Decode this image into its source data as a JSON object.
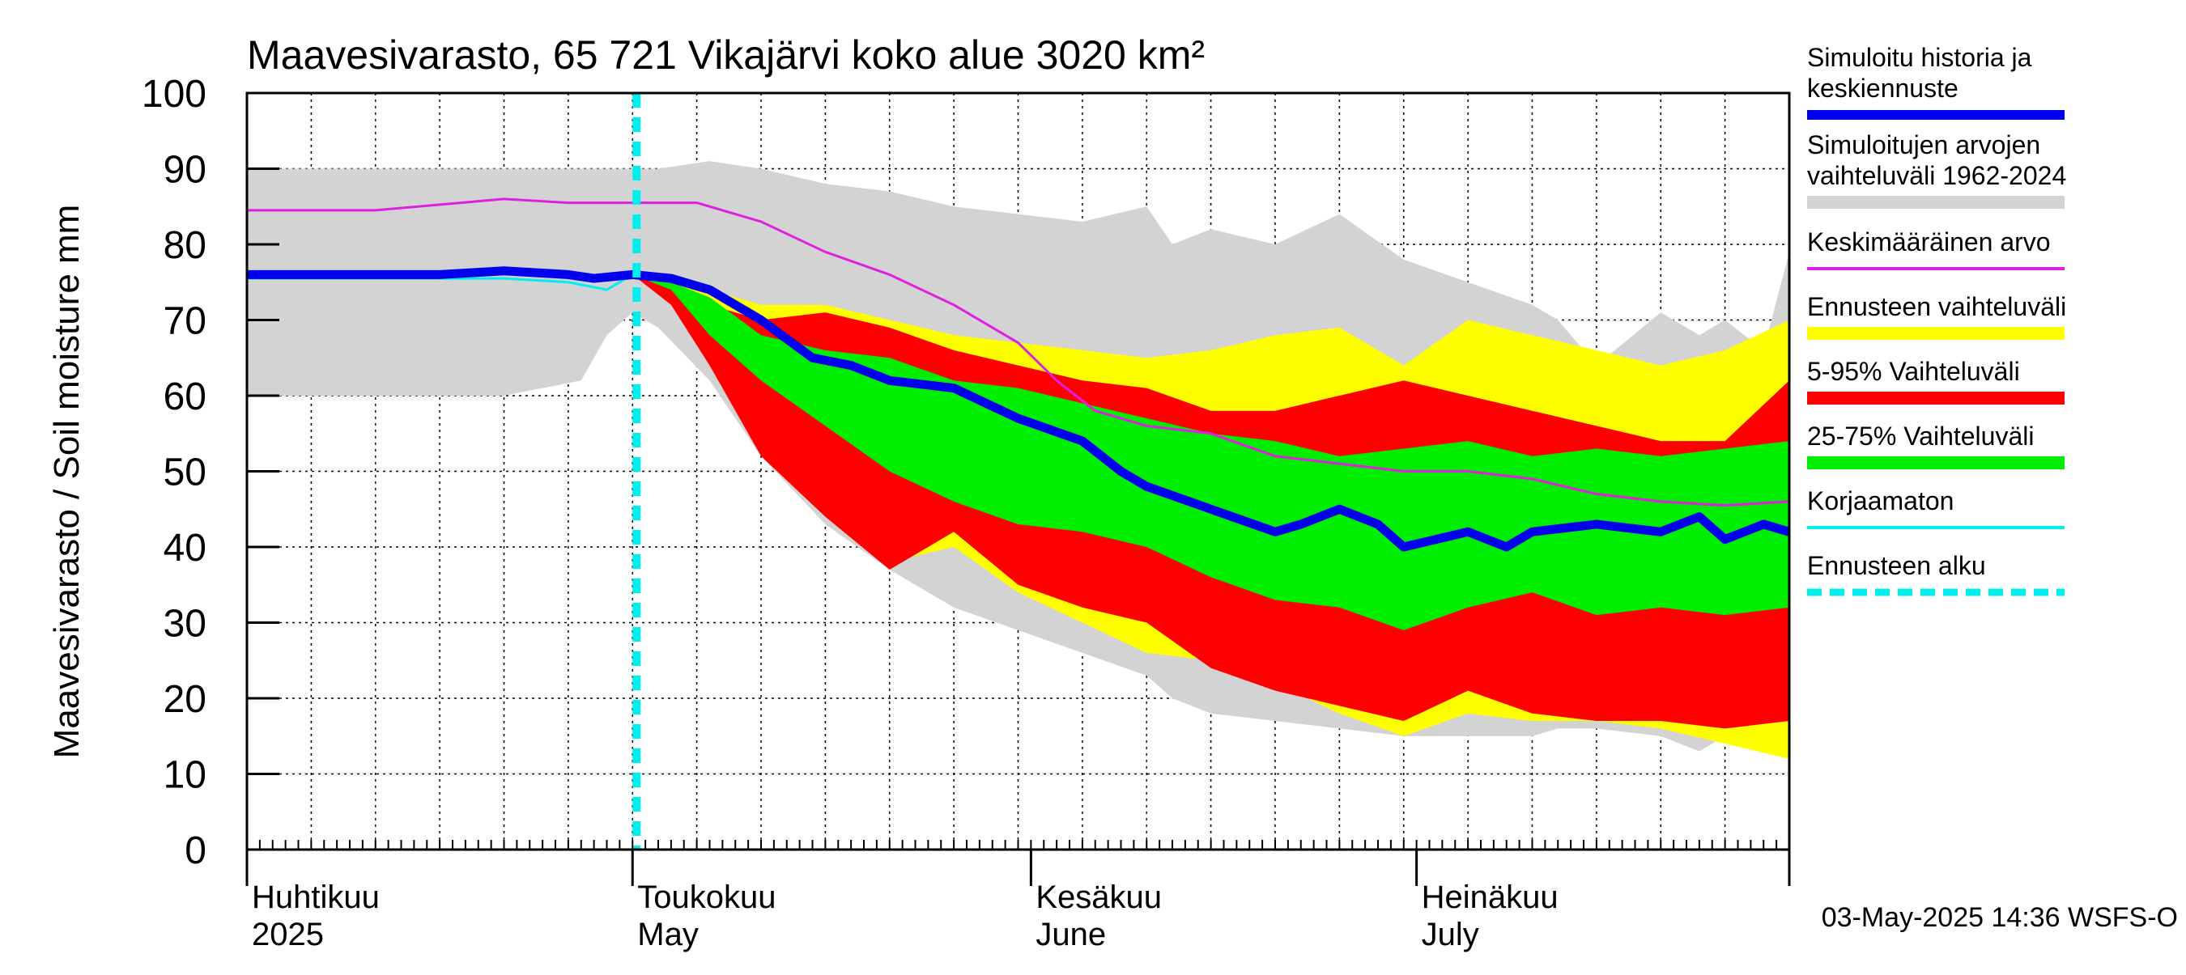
{
  "chart_data": {
    "type": "area",
    "title": "Maavesivarasto, 65 721 Vikajärvi koko alue 3020 km²",
    "ylabel": "Maavesivarasto / Soil moisture   mm",
    "ylim": [
      0,
      100
    ],
    "yticks": [
      0,
      10,
      20,
      30,
      40,
      50,
      60,
      70,
      80,
      90,
      100
    ],
    "x_range_days": [
      0,
      120
    ],
    "month_labels": [
      {
        "fi": "Huhtikuu",
        "en": "2025",
        "day": 0
      },
      {
        "fi": "Toukokuu",
        "en": "May",
        "day": 30
      },
      {
        "fi": "Kesäkuu",
        "en": "June",
        "day": 61
      },
      {
        "fi": "Heinäkuu",
        "en": "July",
        "day": 91
      }
    ],
    "month_boundaries": [
      0,
      30,
      61,
      91,
      120
    ],
    "forecast_start_day": 30,
    "footer": "03-May-2025 14:36 WSFS-O",
    "legend": [
      {
        "label": "Simuloitu historia ja keskiennuste",
        "lines": [
          "Simuloitu historia ja",
          "keskiennuste"
        ],
        "color": "#0000ee",
        "style": "thick"
      },
      {
        "label": "Simuloitujen arvojen vaihteluväli 1962-2024",
        "lines": [
          "Simuloitujen arvojen",
          "vaihteluväli 1962-2024"
        ],
        "color": "#d3d3d3",
        "style": "band"
      },
      {
        "label": "Keskimääräinen arvo",
        "lines": [
          "Keskimääräinen arvo"
        ],
        "color": "#e020e0",
        "style": "thin"
      },
      {
        "label": "Ennusteen vaihteluväli",
        "lines": [
          "Ennusteen vaihteluväli"
        ],
        "color": "#ffff00",
        "style": "band"
      },
      {
        "label": "5-95% Vaihteluväli",
        "lines": [
          "5-95% Vaihteluväli"
        ],
        "color": "#ff0000",
        "style": "band"
      },
      {
        "label": "25-75% Vaihteluväli",
        "lines": [
          "25-75% Vaihteluväli"
        ],
        "color": "#00ee00",
        "style": "band"
      },
      {
        "label": "Korjaamaton",
        "lines": [
          "Korjaamaton"
        ],
        "color": "#00eeee",
        "style": "thin"
      },
      {
        "label": "Ennusteen alku",
        "lines": [
          "Ennusteen alku"
        ],
        "color": "#00eeee",
        "style": "dashed"
      }
    ],
    "series": {
      "hist_range": {
        "x": [
          0,
          10,
          20,
          26,
          28,
          30,
          32,
          36,
          40,
          45,
          50,
          55,
          60,
          65,
          70,
          72,
          75,
          80,
          85,
          90,
          95,
          100,
          102,
          105,
          110,
          113,
          115,
          118,
          120
        ],
        "lo": [
          60,
          60,
          60,
          62,
          68,
          71,
          69,
          62,
          52,
          43,
          37,
          32,
          29,
          26,
          23,
          20,
          18,
          17,
          16,
          15,
          15,
          15,
          16,
          16,
          15,
          13,
          15,
          14,
          13
        ],
        "hi": [
          90,
          90,
          90,
          90,
          90,
          90,
          90,
          91,
          90,
          88,
          87,
          85,
          84,
          83,
          85,
          80,
          82,
          80,
          84,
          78,
          75,
          72,
          70,
          64,
          71,
          68,
          70,
          66,
          79
        ]
      },
      "ens_range": {
        "x": [
          30,
          33,
          36,
          40,
          45,
          50,
          55,
          60,
          65,
          70,
          75,
          80,
          85,
          90,
          95,
          100,
          105,
          110,
          115,
          120
        ],
        "lo": [
          76,
          73,
          66,
          56,
          46,
          38,
          40,
          34,
          30,
          26,
          25,
          22,
          18,
          15,
          18,
          17,
          17,
          16,
          14,
          12
        ],
        "hi": [
          76,
          76,
          74,
          72,
          72,
          70,
          68,
          67,
          66,
          65,
          66,
          68,
          69,
          64,
          70,
          68,
          66,
          64,
          66,
          70
        ]
      },
      "p5_95": {
        "x": [
          30,
          33,
          36,
          40,
          45,
          50,
          55,
          60,
          65,
          70,
          75,
          80,
          85,
          90,
          95,
          100,
          105,
          110,
          115,
          120
        ],
        "lo": [
          76,
          72,
          64,
          52,
          44,
          37,
          42,
          35,
          32,
          30,
          24,
          21,
          19,
          17,
          21,
          18,
          17,
          17,
          16,
          17
        ],
        "hi": [
          76,
          75,
          72,
          70,
          71,
          69,
          66,
          64,
          62,
          61,
          58,
          58,
          60,
          62,
          60,
          58,
          56,
          54,
          54,
          62
        ]
      },
      "p25_75": {
        "x": [
          30,
          33,
          36,
          40,
          45,
          50,
          55,
          60,
          65,
          70,
          75,
          80,
          85,
          90,
          95,
          100,
          105,
          110,
          115,
          120
        ],
        "lo": [
          76,
          74,
          68,
          62,
          56,
          50,
          46,
          43,
          42,
          40,
          36,
          33,
          32,
          29,
          32,
          34,
          31,
          32,
          31,
          32
        ],
        "hi": [
          76,
          75,
          73,
          68,
          66,
          65,
          62,
          61,
          59,
          57,
          55,
          54,
          52,
          53,
          54,
          52,
          53,
          52,
          53,
          54
        ]
      },
      "median": {
        "x": [
          0,
          10,
          15,
          20,
          25,
          27,
          30,
          33,
          36,
          40,
          44,
          47,
          50,
          55,
          60,
          65,
          68,
          70,
          75,
          80,
          82,
          85,
          88,
          90,
          95,
          98,
          100,
          105,
          110,
          113,
          115,
          118,
          120
        ],
        "y": [
          76,
          76,
          76,
          76.5,
          76,
          75.5,
          76,
          75.5,
          74,
          70,
          65,
          64,
          62,
          61,
          57,
          54,
          50,
          48,
          45,
          42,
          43,
          45,
          43,
          40,
          42,
          40,
          42,
          43,
          42,
          44,
          41,
          43,
          42
        ]
      },
      "mean": {
        "x": [
          0,
          10,
          20,
          25,
          30,
          35,
          40,
          45,
          50,
          55,
          60,
          63,
          66,
          70,
          75,
          80,
          85,
          90,
          95,
          100,
          105,
          110,
          115,
          120
        ],
        "y": [
          84.5,
          84.5,
          86,
          85.5,
          85.5,
          85.5,
          83,
          79,
          76,
          72,
          67,
          62,
          58,
          56,
          55,
          52,
          51,
          50,
          50,
          49,
          47,
          46,
          45.5,
          46
        ]
      },
      "uncorrected": {
        "x": [
          0,
          10,
          14,
          20,
          25,
          28,
          30,
          32
        ],
        "y": [
          75.5,
          75.5,
          75.5,
          75.5,
          75,
          74,
          76,
          76
        ]
      }
    }
  }
}
